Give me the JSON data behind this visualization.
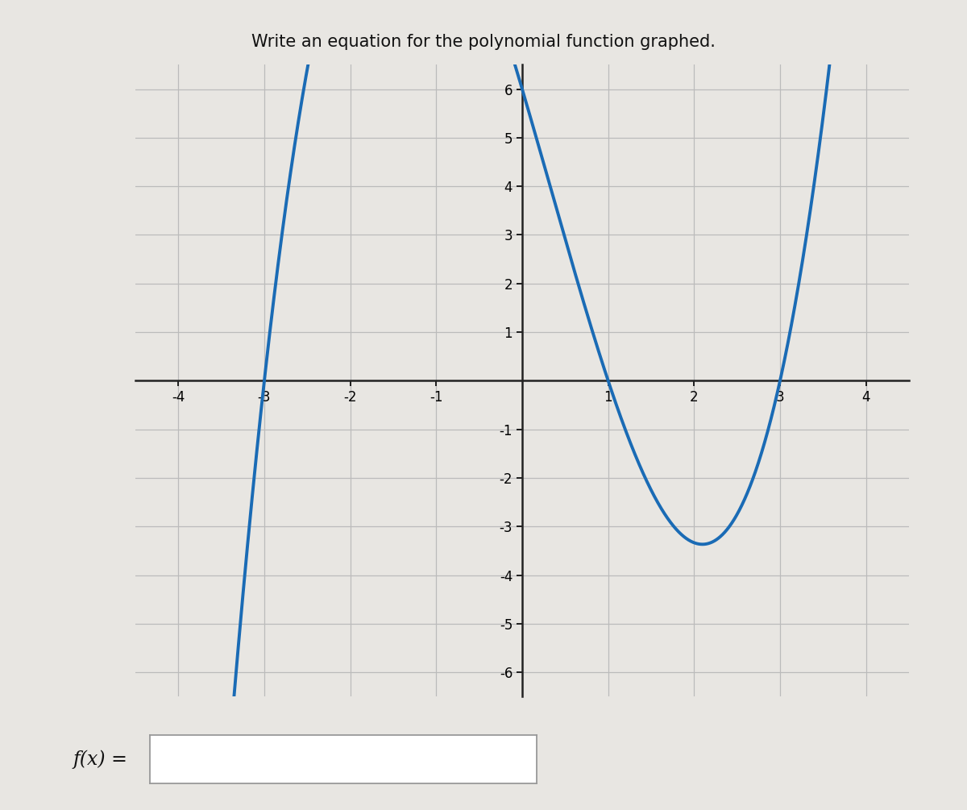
{
  "title": "Write an equation for the polynomial function graphed.",
  "title_fontsize": 15,
  "title_fontfamily": "sans-serif",
  "xlim": [
    -4.5,
    4.5
  ],
  "ylim": [
    -6.5,
    6.5
  ],
  "xticks": [
    -4,
    -3,
    -2,
    -1,
    1,
    2,
    3,
    4
  ],
  "yticks": [
    -6,
    -5,
    -4,
    -3,
    -2,
    -1,
    1,
    2,
    3,
    4,
    5,
    6
  ],
  "curve_color": "#1a6bb5",
  "curve_linewidth": 2.8,
  "a": 0.6667,
  "grid_color": "#bbbbbb",
  "grid_linewidth": 0.9,
  "axis_color": "#222222",
  "bg_color": "#e8e6e2",
  "plot_bg_color": "#e8e6e2",
  "tick_fontsize": 12,
  "fx_label": "f(x) ="
}
